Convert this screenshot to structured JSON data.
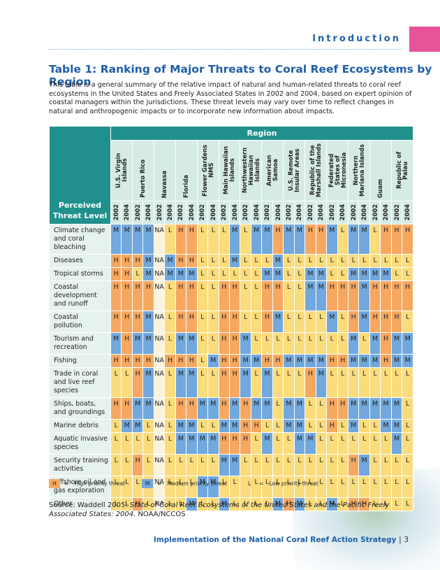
{
  "header": {
    "section": "Introduction"
  },
  "intro": "This table is a general summary of the relative impact of natural and human-related threats to coral reef ecosystems in the United States and Freely Associated States in 2002 and 2004, based on expert opinion of coastal managers within the jurisdictions. These threat levels may vary over time to reflect changes in natural and anthropogenic impacts or to incorporate new information about impacts.",
  "table": {
    "title": "Table 1: Ranking of Major Threats to Coral Reef Ecosystems by Region",
    "region_header": "Region",
    "row_header": "Perceived Threat Level",
    "regions": [
      "U.S. Virgin Islands",
      "Puerto Rico",
      "Navassa",
      "Florida",
      "Flower Gardens NMS",
      "Main Hawaiian Islands",
      "Northwestern Hawaiian Islands",
      "American Samoa",
      "U.S. Remote Insular Areas",
      "Republic of the Marshall Islands",
      "Federated States of Micronesia",
      "Northern Mariana Islands",
      "Guam",
      "Republic of Palau"
    ],
    "years": [
      "2002",
      "2004"
    ],
    "rows": [
      {
        "label": "Climate change and coral bleaching",
        "values": [
          "M",
          "M",
          "M",
          "M",
          "NA",
          "L",
          "H",
          "H",
          "L",
          "L",
          "L",
          "M",
          "L",
          "M",
          "M",
          "H",
          "M",
          "M",
          "H",
          "H",
          "M",
          "L",
          "M",
          "M",
          "L",
          "H",
          "H",
          "H"
        ]
      },
      {
        "label": "Diseases",
        "values": [
          "H",
          "H",
          "H",
          "M",
          "NA",
          "M",
          "H",
          "H",
          "L",
          "L",
          "L",
          "M",
          "L",
          "L",
          "L",
          "M",
          "L",
          "L",
          "L",
          "L",
          "L",
          "L",
          "L",
          "L",
          "L",
          "L",
          "L",
          "L"
        ]
      },
      {
        "label": "Tropical storms",
        "values": [
          "H",
          "H",
          "L",
          "M",
          "NA",
          "M",
          "M",
          "M",
          "L",
          "L",
          "L",
          "L",
          "L",
          "L",
          "M",
          "M",
          "L",
          "L",
          "M",
          "M",
          "L",
          "L",
          "M",
          "M",
          "M",
          "M",
          "L",
          "L"
        ]
      },
      {
        "label": "Coastal development and runoff",
        "values": [
          "H",
          "H",
          "H",
          "H",
          "NA",
          "L",
          "H",
          "H",
          "L",
          "L",
          "H",
          "H",
          "L",
          "L",
          "H",
          "H",
          "L",
          "L",
          "M",
          "M",
          "H",
          "H",
          "H",
          "M",
          "H",
          "H",
          "H",
          "H"
        ]
      },
      {
        "label": "Coastal pollution",
        "values": [
          "H",
          "H",
          "H",
          "M",
          "NA",
          "L",
          "H",
          "H",
          "L",
          "L",
          "H",
          "H",
          "L",
          "L",
          "H",
          "M",
          "L",
          "L",
          "L",
          "L",
          "M",
          "L",
          "H",
          "M",
          "H",
          "H",
          "H",
          "L"
        ]
      },
      {
        "label": "Tourism and recreation",
        "values": [
          "M",
          "H",
          "M",
          "M",
          "NA",
          "L",
          "M",
          "M",
          "L",
          "L",
          "H",
          "H",
          "M",
          "L",
          "L",
          "L",
          "L",
          "L",
          "L",
          "L",
          "L",
          "L",
          "M",
          "L",
          "M",
          "H",
          "M",
          "M"
        ]
      },
      {
        "label": "Fishing",
        "values": [
          "H",
          "H",
          "H",
          "H",
          "NA",
          "H",
          "H",
          "H",
          "L",
          "M",
          "H",
          "H",
          "M",
          "M",
          "H",
          "H",
          "M",
          "M",
          "M",
          "M",
          "H",
          "H",
          "M",
          "M",
          "M",
          "H",
          "M",
          "M"
        ]
      },
      {
        "label": "Trade in coral and live reef species",
        "values": [
          "L",
          "L",
          "H",
          "M",
          "NA",
          "L",
          "M",
          "M",
          "L",
          "L",
          "H",
          "H",
          "M",
          "L",
          "M",
          "L",
          "L",
          "L",
          "H",
          "M",
          "L",
          "L",
          "L",
          "L",
          "L",
          "L",
          "L",
          "L"
        ]
      },
      {
        "label": "Ships, boats, and groundings",
        "values": [
          "H",
          "H",
          "M",
          "M",
          "NA",
          "L",
          "H",
          "H",
          "M",
          "M",
          "H",
          "M",
          "H",
          "M",
          "M",
          "L",
          "M",
          "M",
          "L",
          "L",
          "H",
          "H",
          "M",
          "M",
          "M",
          "M",
          "M",
          "L"
        ]
      },
      {
        "label": "Marine debris",
        "values": [
          "L",
          "M",
          "M",
          "L",
          "NA",
          "L",
          "M",
          "M",
          "L",
          "L",
          "M",
          "M",
          "H",
          "H",
          "L",
          "L",
          "M",
          "M",
          "L",
          "L",
          "H",
          "L",
          "M",
          "L",
          "L",
          "M",
          "M",
          "L"
        ]
      },
      {
        "label": "Aquatic invasive species",
        "values": [
          "L",
          "L",
          "L",
          "L",
          "NA",
          "L",
          "M",
          "M",
          "M",
          "M",
          "H",
          "H",
          "H",
          "L",
          "M",
          "L",
          "L",
          "M",
          "M",
          "L",
          "L",
          "L",
          "L",
          "L",
          "L",
          "L",
          "M",
          "L"
        ]
      },
      {
        "label": "Security training activities",
        "values": [
          "L",
          "L",
          "H",
          "L",
          "NA",
          "L",
          "L",
          "L",
          "L",
          "L",
          "M",
          "M",
          "L",
          "L",
          "L",
          "L",
          "L",
          "L",
          "L",
          "L",
          "L",
          "L",
          "H",
          "M",
          "L",
          "L",
          "L",
          "L"
        ]
      },
      {
        "label": "Offshore oil and gas exploration",
        "values": [
          "L",
          "L",
          "L",
          "L",
          "NA",
          "L",
          "L",
          "L",
          "M",
          "M",
          "L",
          "L",
          "L",
          "L",
          "L",
          "L",
          "L",
          "L",
          "L",
          "L",
          "L",
          "L",
          "L",
          "L",
          "L",
          "L",
          "L",
          "L"
        ]
      },
      {
        "label": "Other",
        "values": [
          "L",
          "L",
          "H",
          "L",
          "NA",
          "L",
          "L",
          "M",
          "L",
          "L",
          "M",
          "L",
          "L",
          "L",
          "L",
          "M",
          "H",
          "M",
          "L",
          "L",
          "M",
          "L",
          "H",
          "H",
          "L",
          "L",
          "L",
          "L"
        ]
      }
    ]
  },
  "legend": {
    "equals": "=",
    "items": [
      {
        "code": "H",
        "text": "High priority threat"
      },
      {
        "code": "M",
        "text": "Medium priority threat"
      },
      {
        "code": "L",
        "text": "Low priority threat"
      }
    ]
  },
  "source": {
    "prefix": "Source: Waddell 2005:",
    "italic": "State of Coral Reef Ecosystems of the United States and the Pacific Freely Associated States: 2004.",
    "suffix": "NOAA/NCCOS"
  },
  "footer": {
    "title": "Implementation of the National Coral Reef Action Strategy",
    "separator": "|",
    "page": "3"
  }
}
